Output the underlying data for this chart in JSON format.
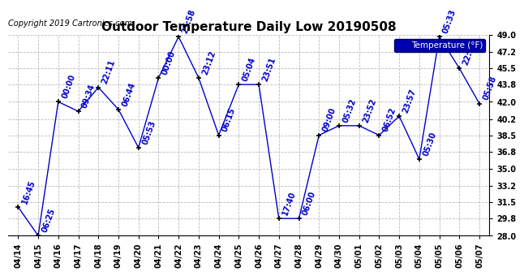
{
  "title": "Outdoor Temperature Daily Low 20190508",
  "copyright": "Copyright 2019 Cartronics.com",
  "legend_label": "Temperature (°F)",
  "background_color": "#ffffff",
  "plot_bg_color": "#ffffff",
  "line_color": "#0000cc",
  "text_color": "#0000cc",
  "grid_color": "#bbbbbb",
  "dates": [
    "04/14",
    "04/15",
    "04/16",
    "04/17",
    "04/18",
    "04/19",
    "04/20",
    "04/21",
    "04/22",
    "04/23",
    "04/24",
    "04/25",
    "04/26",
    "04/27",
    "04/28",
    "04/29",
    "04/30",
    "05/01",
    "05/02",
    "05/03",
    "05/04",
    "05/05",
    "05/06",
    "05/07"
  ],
  "values": [
    31.0,
    28.0,
    42.0,
    41.0,
    43.5,
    41.2,
    37.2,
    44.5,
    48.8,
    44.5,
    38.5,
    43.8,
    43.8,
    29.8,
    29.8,
    38.5,
    39.5,
    39.5,
    38.5,
    40.5,
    36.0,
    48.8,
    45.5,
    41.8
  ],
  "times": [
    "16:45",
    "06:25",
    "00:00",
    "09:34",
    "22:11",
    "06:44",
    "05:53",
    "00:00",
    "23:58",
    "23:12",
    "06:15",
    "05:04",
    "23:51",
    "17:40",
    "06:00",
    "09:00",
    "05:32",
    "23:52",
    "06:52",
    "23:57",
    "05:30",
    "05:33",
    "22:53",
    "05:58"
  ],
  "ylim_min": 28.0,
  "ylim_max": 49.0,
  "yticks": [
    28.0,
    29.8,
    31.5,
    33.2,
    35.0,
    36.8,
    38.5,
    40.2,
    42.0,
    43.8,
    45.5,
    47.2,
    49.0
  ],
  "title_fontsize": 11,
  "label_fontsize": 7,
  "copyright_fontsize": 7,
  "tick_fontsize": 7,
  "legend_fontsize": 7.5
}
